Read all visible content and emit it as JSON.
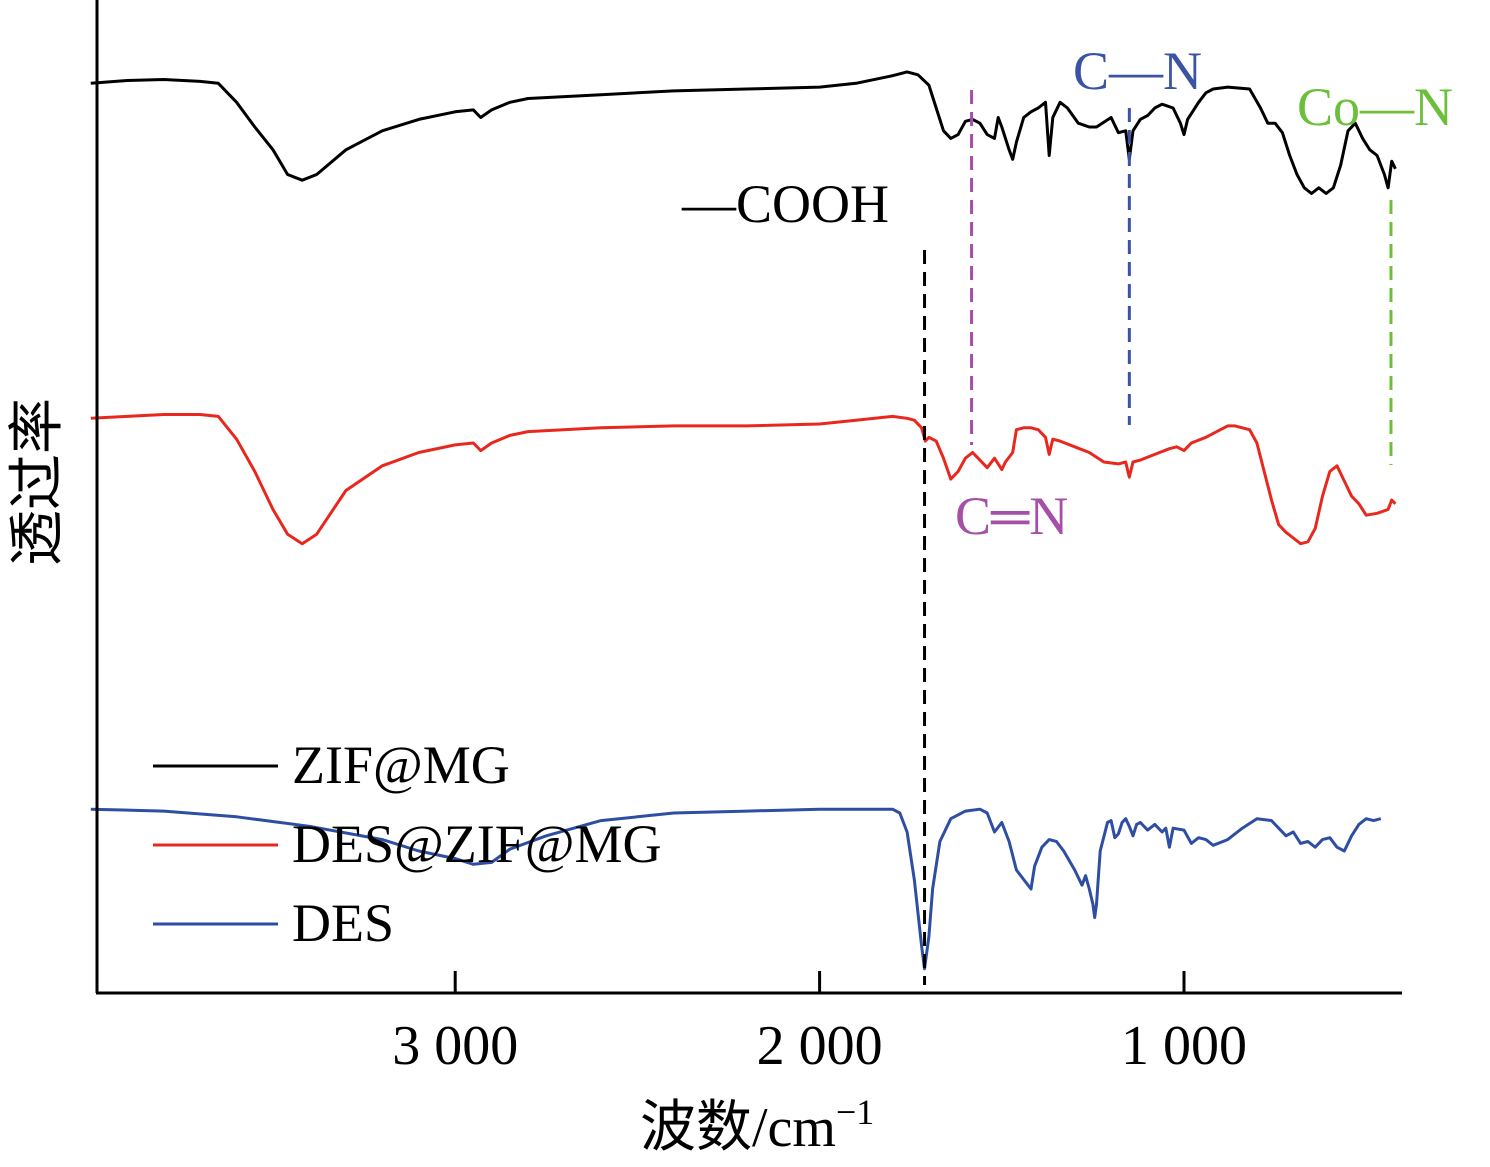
{
  "chart_data": {
    "type": "line",
    "title": "",
    "xlabel": "波数/cm",
    "xlabel_sup": "−1",
    "ylabel": "透过率",
    "xlim": [
      4000,
      400
    ],
    "x_reversed": true,
    "x_ticks": [
      3000,
      2000,
      1000
    ],
    "x_tick_labels": [
      "3 000",
      "2 000",
      "1 000"
    ],
    "y_ticks": [],
    "grid": false,
    "legend_position": "bottom-left",
    "series": [
      {
        "name": "ZIF@MG",
        "color": "#000000",
        "points": [
          [
            4000,
            0.93
          ],
          [
            3900,
            0.945
          ],
          [
            3800,
            0.95
          ],
          [
            3700,
            0.94
          ],
          [
            3650,
            0.93
          ],
          [
            3600,
            0.83
          ],
          [
            3550,
            0.7
          ],
          [
            3500,
            0.58
          ],
          [
            3460,
            0.45
          ],
          [
            3420,
            0.42
          ],
          [
            3380,
            0.45
          ],
          [
            3300,
            0.58
          ],
          [
            3200,
            0.68
          ],
          [
            3100,
            0.74
          ],
          [
            3000,
            0.78
          ],
          [
            2950,
            0.79
          ],
          [
            2930,
            0.75
          ],
          [
            2900,
            0.79
          ],
          [
            2850,
            0.83
          ],
          [
            2800,
            0.85
          ],
          [
            2600,
            0.87
          ],
          [
            2400,
            0.89
          ],
          [
            2200,
            0.9
          ],
          [
            2000,
            0.91
          ],
          [
            1900,
            0.93
          ],
          [
            1800,
            0.97
          ],
          [
            1760,
            0.99
          ],
          [
            1730,
            0.975
          ],
          [
            1700,
            0.92
          ],
          [
            1680,
            0.8
          ],
          [
            1660,
            0.68
          ],
          [
            1640,
            0.64
          ],
          [
            1620,
            0.66
          ],
          [
            1600,
            0.73
          ],
          [
            1580,
            0.74
          ],
          [
            1560,
            0.72
          ],
          [
            1540,
            0.66
          ],
          [
            1520,
            0.64
          ],
          [
            1510,
            0.75
          ],
          [
            1500,
            0.7
          ],
          [
            1480,
            0.58
          ],
          [
            1470,
            0.53
          ],
          [
            1460,
            0.62
          ],
          [
            1440,
            0.75
          ],
          [
            1420,
            0.78
          ],
          [
            1400,
            0.8
          ],
          [
            1380,
            0.83
          ],
          [
            1370,
            0.55
          ],
          [
            1360,
            0.75
          ],
          [
            1340,
            0.83
          ],
          [
            1320,
            0.8
          ],
          [
            1290,
            0.72
          ],
          [
            1260,
            0.7
          ],
          [
            1240,
            0.7
          ],
          [
            1200,
            0.75
          ],
          [
            1180,
            0.67
          ],
          [
            1160,
            0.68
          ],
          [
            1150,
            0.53
          ],
          [
            1140,
            0.68
          ],
          [
            1120,
            0.74
          ],
          [
            1100,
            0.76
          ],
          [
            1080,
            0.8
          ],
          [
            1060,
            0.82
          ],
          [
            1030,
            0.8
          ],
          [
            1010,
            0.72
          ],
          [
            1000,
            0.66
          ],
          [
            990,
            0.74
          ],
          [
            960,
            0.83
          ],
          [
            940,
            0.88
          ],
          [
            920,
            0.9
          ],
          [
            880,
            0.91
          ],
          [
            820,
            0.9
          ],
          [
            790,
            0.8
          ],
          [
            770,
            0.72
          ],
          [
            750,
            0.72
          ],
          [
            730,
            0.67
          ],
          [
            710,
            0.55
          ],
          [
            690,
            0.45
          ],
          [
            670,
            0.38
          ],
          [
            650,
            0.35
          ],
          [
            630,
            0.38
          ],
          [
            610,
            0.35
          ],
          [
            590,
            0.38
          ],
          [
            570,
            0.5
          ],
          [
            550,
            0.68
          ],
          [
            530,
            0.72
          ],
          [
            510,
            0.64
          ],
          [
            490,
            0.58
          ],
          [
            470,
            0.55
          ],
          [
            450,
            0.45
          ],
          [
            440,
            0.38
          ],
          [
            430,
            0.52
          ],
          [
            420,
            0.48
          ]
        ]
      },
      {
        "name": "DES@ZIF@MG",
        "color": "#e8281e",
        "points": [
          [
            4000,
            0.43
          ],
          [
            3900,
            0.44
          ],
          [
            3800,
            0.45
          ],
          [
            3700,
            0.45
          ],
          [
            3650,
            0.44
          ],
          [
            3600,
            0.32
          ],
          [
            3550,
            0.15
          ],
          [
            3500,
            -0.05
          ],
          [
            3460,
            -0.18
          ],
          [
            3420,
            -0.23
          ],
          [
            3380,
            -0.18
          ],
          [
            3300,
            0.05
          ],
          [
            3200,
            0.18
          ],
          [
            3100,
            0.25
          ],
          [
            3000,
            0.29
          ],
          [
            2950,
            0.3
          ],
          [
            2930,
            0.26
          ],
          [
            2900,
            0.3
          ],
          [
            2850,
            0.34
          ],
          [
            2800,
            0.36
          ],
          [
            2600,
            0.38
          ],
          [
            2400,
            0.39
          ],
          [
            2200,
            0.39
          ],
          [
            2000,
            0.4
          ],
          [
            1900,
            0.42
          ],
          [
            1800,
            0.44
          ],
          [
            1760,
            0.43
          ],
          [
            1740,
            0.42
          ],
          [
            1720,
            0.38
          ],
          [
            1710,
            0.31
          ],
          [
            1700,
            0.33
          ],
          [
            1680,
            0.31
          ],
          [
            1660,
            0.22
          ],
          [
            1640,
            0.11
          ],
          [
            1620,
            0.15
          ],
          [
            1600,
            0.22
          ],
          [
            1580,
            0.25
          ],
          [
            1560,
            0.21
          ],
          [
            1540,
            0.17
          ],
          [
            1520,
            0.22
          ],
          [
            1500,
            0.16
          ],
          [
            1490,
            0.2
          ],
          [
            1470,
            0.25
          ],
          [
            1460,
            0.37
          ],
          [
            1440,
            0.38
          ],
          [
            1420,
            0.38
          ],
          [
            1400,
            0.37
          ],
          [
            1380,
            0.33
          ],
          [
            1370,
            0.24
          ],
          [
            1360,
            0.32
          ],
          [
            1340,
            0.31
          ],
          [
            1300,
            0.28
          ],
          [
            1260,
            0.25
          ],
          [
            1220,
            0.2
          ],
          [
            1180,
            0.19
          ],
          [
            1160,
            0.2
          ],
          [
            1150,
            0.12
          ],
          [
            1140,
            0.2
          ],
          [
            1120,
            0.21
          ],
          [
            1080,
            0.24
          ],
          [
            1040,
            0.27
          ],
          [
            1020,
            0.28
          ],
          [
            1000,
            0.26
          ],
          [
            980,
            0.3
          ],
          [
            940,
            0.33
          ],
          [
            900,
            0.37
          ],
          [
            880,
            0.39
          ],
          [
            860,
            0.39
          ],
          [
            820,
            0.37
          ],
          [
            800,
            0.3
          ],
          [
            780,
            0.15
          ],
          [
            760,
            0.0
          ],
          [
            740,
            -0.13
          ],
          [
            720,
            -0.17
          ],
          [
            700,
            -0.2
          ],
          [
            680,
            -0.23
          ],
          [
            660,
            -0.22
          ],
          [
            640,
            -0.15
          ],
          [
            620,
            0.02
          ],
          [
            600,
            0.15
          ],
          [
            580,
            0.18
          ],
          [
            560,
            0.1
          ],
          [
            540,
            0.02
          ],
          [
            520,
            -0.02
          ],
          [
            500,
            -0.08
          ],
          [
            470,
            -0.07
          ],
          [
            440,
            -0.05
          ],
          [
            430,
            0.0
          ],
          [
            420,
            -0.02
          ]
        ]
      },
      {
        "name": "DES",
        "color": "#2e4ea3",
        "points": [
          [
            4000,
            0.12
          ],
          [
            3800,
            0.11
          ],
          [
            3600,
            0.08
          ],
          [
            3400,
            0.03
          ],
          [
            3200,
            -0.04
          ],
          [
            3100,
            -0.1
          ],
          [
            3000,
            -0.14
          ],
          [
            2950,
            -0.17
          ],
          [
            2900,
            -0.16
          ],
          [
            2850,
            -0.09
          ],
          [
            2750,
            -0.02
          ],
          [
            2600,
            0.06
          ],
          [
            2400,
            0.1
          ],
          [
            2200,
            0.11
          ],
          [
            2000,
            0.12
          ],
          [
            1900,
            0.12
          ],
          [
            1800,
            0.12
          ],
          [
            1780,
            0.1
          ],
          [
            1760,
            0.0
          ],
          [
            1740,
            -0.25
          ],
          [
            1720,
            -0.6
          ],
          [
            1712,
            -0.72
          ],
          [
            1700,
            -0.55
          ],
          [
            1690,
            -0.3
          ],
          [
            1670,
            -0.05
          ],
          [
            1640,
            0.07
          ],
          [
            1600,
            0.11
          ],
          [
            1560,
            0.12
          ],
          [
            1540,
            0.1
          ],
          [
            1520,
            0.0
          ],
          [
            1500,
            0.05
          ],
          [
            1480,
            -0.05
          ],
          [
            1460,
            -0.2
          ],
          [
            1440,
            -0.25
          ],
          [
            1420,
            -0.3
          ],
          [
            1410,
            -0.18
          ],
          [
            1390,
            -0.08
          ],
          [
            1370,
            -0.04
          ],
          [
            1350,
            -0.05
          ],
          [
            1330,
            -0.1
          ],
          [
            1300,
            -0.2
          ],
          [
            1280,
            -0.28
          ],
          [
            1270,
            -0.23
          ],
          [
            1260,
            -0.3
          ],
          [
            1250,
            -0.38
          ],
          [
            1245,
            -0.45
          ],
          [
            1240,
            -0.38
          ],
          [
            1230,
            -0.1
          ],
          [
            1210,
            0.05
          ],
          [
            1200,
            0.06
          ],
          [
            1190,
            -0.03
          ],
          [
            1180,
            -0.01
          ],
          [
            1170,
            0.05
          ],
          [
            1160,
            0.07
          ],
          [
            1150,
            0.03
          ],
          [
            1140,
            -0.02
          ],
          [
            1130,
            0.04
          ],
          [
            1120,
            0.05
          ],
          [
            1100,
            0.01
          ],
          [
            1080,
            0.04
          ],
          [
            1060,
            0.0
          ],
          [
            1050,
            0.02
          ],
          [
            1040,
            -0.08
          ],
          [
            1030,
            0.02
          ],
          [
            1000,
            0.01
          ],
          [
            980,
            -0.06
          ],
          [
            960,
            -0.03
          ],
          [
            940,
            -0.04
          ],
          [
            920,
            -0.07
          ],
          [
            880,
            -0.04
          ],
          [
            840,
            0.02
          ],
          [
            800,
            0.07
          ],
          [
            760,
            0.06
          ],
          [
            740,
            0.02
          ],
          [
            720,
            -0.02
          ],
          [
            700,
            0.0
          ],
          [
            680,
            -0.06
          ],
          [
            660,
            -0.05
          ],
          [
            640,
            -0.08
          ],
          [
            620,
            -0.04
          ],
          [
            600,
            -0.03
          ],
          [
            580,
            -0.08
          ],
          [
            560,
            -0.1
          ],
          [
            540,
            -0.02
          ],
          [
            520,
            0.04
          ],
          [
            500,
            0.07
          ],
          [
            480,
            0.06
          ],
          [
            460,
            0.07
          ]
        ]
      }
    ],
    "annotations": [
      {
        "label": "—COOH",
        "x": 1712,
        "color": "#000000"
      },
      {
        "label": "C═N",
        "x": 1583,
        "color": "#a64fa8"
      },
      {
        "label": "C—N",
        "x": 1150,
        "color": "#3b53a4"
      },
      {
        "label": "Co—N",
        "x": 432,
        "color": "#6bbf3a"
      }
    ]
  }
}
